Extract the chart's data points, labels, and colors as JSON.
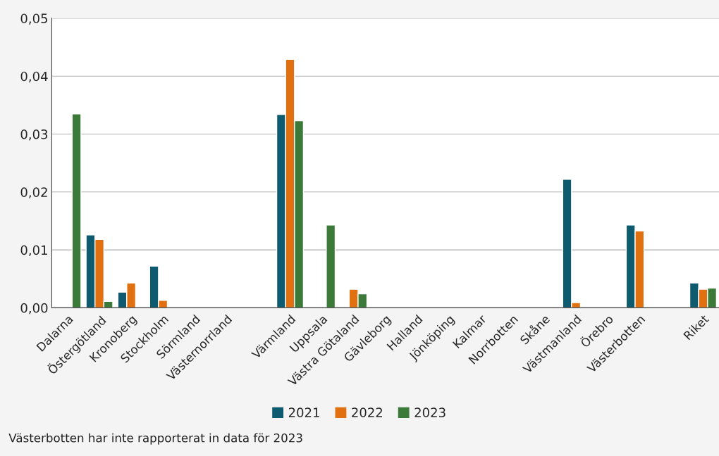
{
  "chart_data": {
    "type": "bar",
    "categories": [
      "Dalarna",
      "Östergötland",
      "Kronoberg",
      "Stockholm",
      "Sörmland",
      "Västernorrland",
      null,
      "Värmland",
      "Uppsala",
      "Västra Götaland",
      "Gävleborg",
      "Halland",
      "Jönköping",
      "Kalmar",
      "Norrbotten",
      "Skåne",
      "Västmanland",
      "Örebro",
      "Västerbotten",
      null,
      "Riket"
    ],
    "series": [
      {
        "name": "2021",
        "color": "#0e5a6e",
        "values": [
          null,
          0.0126,
          0.0027,
          0.0072,
          null,
          null,
          null,
          0.0334,
          null,
          null,
          null,
          null,
          null,
          null,
          null,
          null,
          0.0222,
          null,
          0.0143,
          null,
          0.0043
        ]
      },
      {
        "name": "2022",
        "color": "#e07010",
        "values": [
          null,
          0.0118,
          0.0043,
          0.0013,
          null,
          null,
          null,
          0.0429,
          null,
          0.0032,
          null,
          null,
          null,
          null,
          null,
          null,
          0.0009,
          null,
          0.0133,
          null,
          0.0032
        ]
      },
      {
        "name": "2023",
        "color": "#3c7a3a",
        "values": [
          0.0335,
          0.0011,
          null,
          null,
          null,
          null,
          null,
          0.0323,
          0.0143,
          0.0024,
          null,
          null,
          null,
          null,
          null,
          null,
          null,
          null,
          null,
          null,
          0.0034
        ]
      }
    ],
    "ylim": [
      0,
      0.05
    ],
    "yticks": [
      {
        "value": 0,
        "label": "0,00"
      },
      {
        "value": 0.01,
        "label": "0,01"
      },
      {
        "value": 0.02,
        "label": "0,02"
      },
      {
        "value": 0.03,
        "label": "0,03"
      },
      {
        "value": 0.04,
        "label": "0,04"
      },
      {
        "value": 0.05,
        "label": "0,05"
      }
    ],
    "grid": "y",
    "legend": "bottom",
    "annotations": [
      "Västerbotten har inte rapporterat in data för 2023"
    ]
  }
}
